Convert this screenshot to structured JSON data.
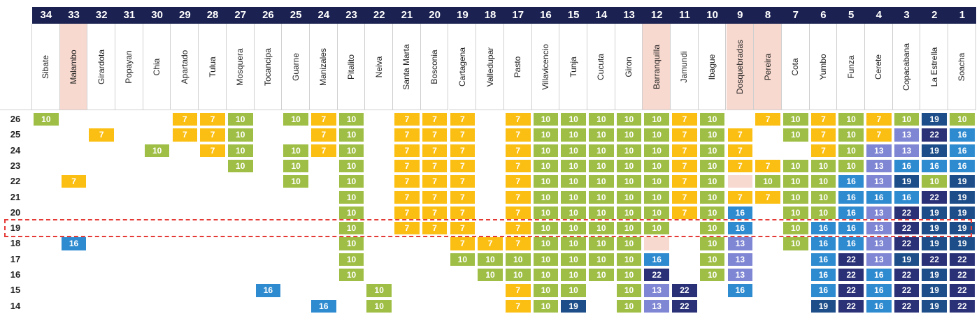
{
  "chart_data": {
    "type": "table",
    "colors": {
      "header_bar": "#1b2150",
      "highlight_header": "#f8d9cf",
      "value_7": "#fbbf14",
      "value_10": "#9fbe45",
      "value_13": "#7f86d3",
      "value_16": "#2f8bd0",
      "value_19": "#1d4e89",
      "value_22": "#2a3177",
      "highlight_outline": "#e53935"
    },
    "highlighted_row": "19",
    "rows": [
      "26",
      "25",
      "24",
      "23",
      "22",
      "21",
      "20",
      "19",
      "18",
      "17",
      "16",
      "15",
      "14"
    ],
    "columns": [
      {
        "rank": "34",
        "city": "Sibate",
        "highlight": false,
        "values": [
          10,
          null,
          null,
          null,
          null,
          null,
          null,
          null,
          null,
          null,
          null,
          null,
          null
        ]
      },
      {
        "rank": "33",
        "city": "Malambo",
        "highlight": true,
        "values": [
          null,
          null,
          null,
          null,
          7,
          null,
          null,
          null,
          16,
          null,
          null,
          null,
          null
        ]
      },
      {
        "rank": "32",
        "city": "Girardota",
        "highlight": false,
        "values": [
          null,
          7,
          null,
          null,
          null,
          null,
          null,
          null,
          null,
          null,
          null,
          null,
          null
        ]
      },
      {
        "rank": "31",
        "city": "Popayan",
        "highlight": false,
        "values": [
          null,
          null,
          null,
          null,
          null,
          null,
          null,
          null,
          null,
          null,
          null,
          null,
          null
        ]
      },
      {
        "rank": "30",
        "city": "Chia",
        "highlight": false,
        "values": [
          null,
          null,
          10,
          null,
          null,
          null,
          null,
          null,
          null,
          null,
          null,
          null,
          null
        ]
      },
      {
        "rank": "29",
        "city": "Apartado",
        "highlight": false,
        "values": [
          7,
          7,
          null,
          null,
          null,
          null,
          null,
          null,
          null,
          null,
          null,
          null,
          null
        ]
      },
      {
        "rank": "28",
        "city": "Tulua",
        "highlight": false,
        "values": [
          7,
          7,
          7,
          null,
          null,
          null,
          null,
          null,
          null,
          null,
          null,
          null,
          null
        ]
      },
      {
        "rank": "27",
        "city": "Mosquera",
        "highlight": false,
        "values": [
          10,
          10,
          10,
          10,
          null,
          null,
          null,
          null,
          null,
          null,
          null,
          null,
          null
        ]
      },
      {
        "rank": "26",
        "city": "Tocancipa",
        "highlight": false,
        "values": [
          null,
          null,
          null,
          null,
          null,
          null,
          null,
          null,
          null,
          null,
          null,
          16,
          null
        ]
      },
      {
        "rank": "25",
        "city": "Guarne",
        "highlight": false,
        "values": [
          10,
          null,
          10,
          10,
          10,
          null,
          null,
          null,
          null,
          null,
          null,
          null,
          null
        ]
      },
      {
        "rank": "24",
        "city": "Manizales",
        "highlight": false,
        "values": [
          7,
          7,
          7,
          null,
          null,
          null,
          null,
          null,
          null,
          null,
          null,
          null,
          16
        ]
      },
      {
        "rank": "23",
        "city": "Pitalito",
        "highlight": false,
        "values": [
          10,
          10,
          10,
          10,
          10,
          10,
          10,
          10,
          10,
          10,
          10,
          null,
          null
        ]
      },
      {
        "rank": "22",
        "city": "Neiva",
        "highlight": false,
        "values": [
          null,
          null,
          null,
          null,
          null,
          null,
          null,
          null,
          null,
          null,
          null,
          10,
          10
        ]
      },
      {
        "rank": "21",
        "city": "Santa Marta",
        "highlight": false,
        "values": [
          7,
          7,
          7,
          7,
          7,
          7,
          7,
          7,
          null,
          null,
          null,
          null,
          null
        ]
      },
      {
        "rank": "20",
        "city": "Bosconia",
        "highlight": false,
        "values": [
          7,
          7,
          7,
          7,
          7,
          7,
          7,
          7,
          null,
          null,
          null,
          null,
          null
        ]
      },
      {
        "rank": "19",
        "city": "Cartagena",
        "highlight": false,
        "values": [
          7,
          7,
          7,
          7,
          7,
          7,
          7,
          7,
          7,
          10,
          null,
          null,
          null
        ]
      },
      {
        "rank": "18",
        "city": "Valledupar",
        "highlight": false,
        "values": [
          null,
          null,
          null,
          null,
          null,
          null,
          null,
          null,
          7,
          10,
          10,
          null,
          null
        ]
      },
      {
        "rank": "17",
        "city": "Pasto",
        "highlight": false,
        "values": [
          7,
          7,
          7,
          7,
          7,
          7,
          7,
          7,
          7,
          10,
          10,
          7,
          7
        ]
      },
      {
        "rank": "16",
        "city": "Villavicencio",
        "highlight": false,
        "values": [
          10,
          10,
          10,
          10,
          10,
          10,
          10,
          10,
          10,
          10,
          10,
          10,
          10
        ]
      },
      {
        "rank": "15",
        "city": "Tunja",
        "highlight": false,
        "values": [
          10,
          10,
          10,
          10,
          10,
          10,
          10,
          10,
          10,
          10,
          10,
          10,
          19
        ]
      },
      {
        "rank": "14",
        "city": "Cucuta",
        "highlight": false,
        "values": [
          10,
          10,
          10,
          10,
          10,
          10,
          10,
          10,
          10,
          10,
          10,
          null,
          null
        ]
      },
      {
        "rank": "13",
        "city": "Giron",
        "highlight": false,
        "values": [
          10,
          10,
          10,
          10,
          10,
          10,
          10,
          10,
          10,
          10,
          10,
          10,
          10
        ]
      },
      {
        "rank": "12",
        "city": "Barranquilla",
        "highlight": true,
        "values": [
          10,
          10,
          10,
          10,
          10,
          10,
          10,
          10,
          "hl",
          16,
          22,
          13,
          13
        ]
      },
      {
        "rank": "11",
        "city": "Jamundi",
        "highlight": false,
        "values": [
          7,
          7,
          7,
          7,
          7,
          7,
          7,
          null,
          null,
          null,
          null,
          22,
          22
        ]
      },
      {
        "rank": "10",
        "city": "Ibague",
        "highlight": false,
        "values": [
          10,
          10,
          10,
          10,
          10,
          10,
          10,
          10,
          10,
          10,
          10,
          null,
          null
        ]
      },
      {
        "rank": "9",
        "city": "Dosquebradas",
        "highlight": true,
        "values": [
          null,
          7,
          7,
          7,
          "hl",
          7,
          16,
          16,
          13,
          13,
          13,
          16,
          null
        ]
      },
      {
        "rank": "8",
        "city": "Pereira",
        "highlight": true,
        "values": [
          7,
          null,
          null,
          7,
          10,
          7,
          null,
          null,
          null,
          null,
          null,
          null,
          null
        ]
      },
      {
        "rank": "7",
        "city": "Cota",
        "highlight": false,
        "values": [
          10,
          10,
          null,
          10,
          10,
          10,
          10,
          10,
          10,
          null,
          null,
          null,
          null
        ]
      },
      {
        "rank": "6",
        "city": "Yumbo",
        "highlight": false,
        "values": [
          7,
          7,
          7,
          10,
          10,
          10,
          10,
          16,
          16,
          16,
          16,
          16,
          19
        ]
      },
      {
        "rank": "5",
        "city": "Funza",
        "highlight": false,
        "values": [
          10,
          10,
          10,
          10,
          16,
          16,
          16,
          16,
          16,
          22,
          22,
          22,
          22
        ]
      },
      {
        "rank": "4",
        "city": "Cerete",
        "highlight": false,
        "values": [
          7,
          7,
          13,
          13,
          13,
          16,
          13,
          13,
          13,
          13,
          16,
          16,
          16
        ]
      },
      {
        "rank": "3",
        "city": "Copacabana",
        "highlight": false,
        "values": [
          10,
          13,
          13,
          16,
          19,
          16,
          22,
          22,
          22,
          19,
          22,
          22,
          22
        ]
      },
      {
        "rank": "2",
        "city": "La Estrella",
        "highlight": false,
        "values": [
          19,
          22,
          19,
          16,
          10,
          22,
          19,
          19,
          19,
          22,
          19,
          19,
          19
        ]
      },
      {
        "rank": "1",
        "city": "Soacha",
        "highlight": false,
        "values": [
          10,
          16,
          16,
          16,
          19,
          19,
          19,
          19,
          19,
          22,
          22,
          22,
          22
        ]
      }
    ]
  }
}
